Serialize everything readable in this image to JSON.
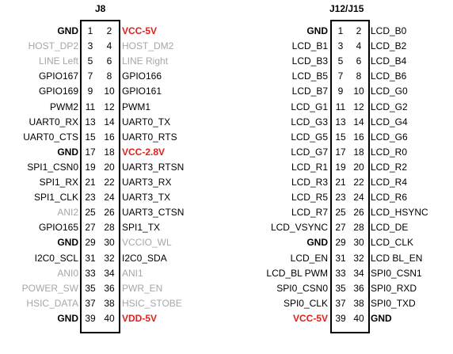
{
  "headers": {
    "left": "J8",
    "right": "J12/J15"
  },
  "colors": {
    "gray": "#a6a6a6",
    "red": "#e0201c"
  },
  "connectors": [
    {
      "rows": [
        {
          "left": "GND",
          "l_style": "bold",
          "pin_l": "1",
          "pin_r": "2",
          "right": "VCC-5V",
          "r_style": "red"
        },
        {
          "left": "HOST_DP2",
          "l_style": "gray",
          "pin_l": "3",
          "pin_r": "4",
          "right": "HOST_DM2",
          "r_style": "gray"
        },
        {
          "left": "LINE Left",
          "l_style": "gray",
          "pin_l": "5",
          "pin_r": "6",
          "right": "LINE Right",
          "r_style": "gray"
        },
        {
          "left": "GPIO167",
          "l_style": "",
          "pin_l": "7",
          "pin_r": "8",
          "right": "GPIO166",
          "r_style": ""
        },
        {
          "left": "GPIO169",
          "l_style": "",
          "pin_l": "9",
          "pin_r": "10",
          "right": "GPIO161",
          "r_style": ""
        },
        {
          "left": "PWM2",
          "l_style": "",
          "pin_l": "11",
          "pin_r": "12",
          "right": "PWM1",
          "r_style": ""
        },
        {
          "left": "UART0_RX",
          "l_style": "",
          "pin_l": "13",
          "pin_r": "14",
          "right": "UART0_TX",
          "r_style": ""
        },
        {
          "left": "UART0_CTS",
          "l_style": "",
          "pin_l": "15",
          "pin_r": "16",
          "right": "UART0_RTS",
          "r_style": ""
        },
        {
          "left": "GND",
          "l_style": "bold",
          "pin_l": "17",
          "pin_r": "18",
          "right": "VCC-2.8V",
          "r_style": "red"
        },
        {
          "left": "SPI1_CSN0",
          "l_style": "",
          "pin_l": "19",
          "pin_r": "20",
          "right": "UART3_RTSN",
          "r_style": ""
        },
        {
          "left": "SPI1_RX",
          "l_style": "",
          "pin_l": "21",
          "pin_r": "22",
          "right": "UART3_RX",
          "r_style": ""
        },
        {
          "left": "SPI1_CLK",
          "l_style": "",
          "pin_l": "23",
          "pin_r": "24",
          "right": "UART3_TX",
          "r_style": ""
        },
        {
          "left": "ANI2",
          "l_style": "gray",
          "pin_l": "25",
          "pin_r": "26",
          "right": "UART3_CTSN",
          "r_style": ""
        },
        {
          "left": "GPIO165",
          "l_style": "",
          "pin_l": "27",
          "pin_r": "28",
          "right": "SPI1_TX",
          "r_style": ""
        },
        {
          "left": "GND",
          "l_style": "bold",
          "pin_l": "29",
          "pin_r": "30",
          "right": "VCCIO_WL",
          "r_style": "gray"
        },
        {
          "left": "I2C0_SCL",
          "l_style": "",
          "pin_l": "31",
          "pin_r": "32",
          "right": "I2C0_SDA",
          "r_style": ""
        },
        {
          "left": "ANI0",
          "l_style": "gray",
          "pin_l": "33",
          "pin_r": "34",
          "right": "ANI1",
          "r_style": "gray"
        },
        {
          "left": "POWER_SW",
          "l_style": "gray",
          "pin_l": "35",
          "pin_r": "36",
          "right": "PWR_EN",
          "r_style": "gray"
        },
        {
          "left": "HSIC_DATA",
          "l_style": "gray",
          "pin_l": "37",
          "pin_r": "38",
          "right": "HSIC_STOBE",
          "r_style": "gray"
        },
        {
          "left": "GND",
          "l_style": "bold",
          "pin_l": "39",
          "pin_r": "40",
          "right": "VDD-5V",
          "r_style": "red"
        }
      ]
    },
    {
      "rows": [
        {
          "left": "GND",
          "l_style": "bold",
          "pin_l": "1",
          "pin_r": "2",
          "right": "LCD_B0",
          "r_style": ""
        },
        {
          "left": "LCD_B1",
          "l_style": "",
          "pin_l": "3",
          "pin_r": "4",
          "right": "LCD_B2",
          "r_style": ""
        },
        {
          "left": "LCD_B3",
          "l_style": "",
          "pin_l": "5",
          "pin_r": "6",
          "right": "LCD_B4",
          "r_style": ""
        },
        {
          "left": "LCD_B5",
          "l_style": "",
          "pin_l": "7",
          "pin_r": "8",
          "right": "LCD_B6",
          "r_style": ""
        },
        {
          "left": "LCD_B7",
          "l_style": "",
          "pin_l": "9",
          "pin_r": "10",
          "right": "LCD_G0",
          "r_style": ""
        },
        {
          "left": "LCD_G1",
          "l_style": "",
          "pin_l": "11",
          "pin_r": "12",
          "right": "LCD_G2",
          "r_style": ""
        },
        {
          "left": "LCD_G3",
          "l_style": "",
          "pin_l": "13",
          "pin_r": "14",
          "right": "LCD_G4",
          "r_style": ""
        },
        {
          "left": "LCD_G5",
          "l_style": "",
          "pin_l": "15",
          "pin_r": "16",
          "right": "LCD_G6",
          "r_style": ""
        },
        {
          "left": "LCD_G7",
          "l_style": "",
          "pin_l": "17",
          "pin_r": "18",
          "right": "LCD_R0",
          "r_style": ""
        },
        {
          "left": "LCD_R1",
          "l_style": "",
          "pin_l": "19",
          "pin_r": "20",
          "right": "LCD_R2",
          "r_style": ""
        },
        {
          "left": "LCD_R3",
          "l_style": "",
          "pin_l": "21",
          "pin_r": "22",
          "right": "LCD_R4",
          "r_style": ""
        },
        {
          "left": "LCD_R5",
          "l_style": "",
          "pin_l": "23",
          "pin_r": "24",
          "right": "LCD_R6",
          "r_style": ""
        },
        {
          "left": "LCD_R7",
          "l_style": "",
          "pin_l": "25",
          "pin_r": "26",
          "right": "LCD_HSYNC",
          "r_style": ""
        },
        {
          "left": "LCD_VSYNC",
          "l_style": "",
          "pin_l": "27",
          "pin_r": "28",
          "right": "LCD_DE",
          "r_style": ""
        },
        {
          "left": "GND",
          "l_style": "bold",
          "pin_l": "29",
          "pin_r": "30",
          "right": "LCD_CLK",
          "r_style": ""
        },
        {
          "left": "LCD_EN",
          "l_style": "",
          "pin_l": "31",
          "pin_r": "32",
          "right": "LCD BL_EN",
          "r_style": ""
        },
        {
          "left": "LCD_BL PWM",
          "l_style": "",
          "pin_l": "33",
          "pin_r": "34",
          "right": "SPI0_CSN1",
          "r_style": ""
        },
        {
          "left": "SPI0_CSN0",
          "l_style": "",
          "pin_l": "35",
          "pin_r": "36",
          "right": "SPI0_RXD",
          "r_style": ""
        },
        {
          "left": "SPI0_CLK",
          "l_style": "",
          "pin_l": "37",
          "pin_r": "38",
          "right": "SPI0_TXD",
          "r_style": ""
        },
        {
          "left": "VCC-5V",
          "l_style": "red",
          "pin_l": "39",
          "pin_r": "40",
          "right": "GND",
          "r_style": "bold"
        }
      ]
    }
  ]
}
